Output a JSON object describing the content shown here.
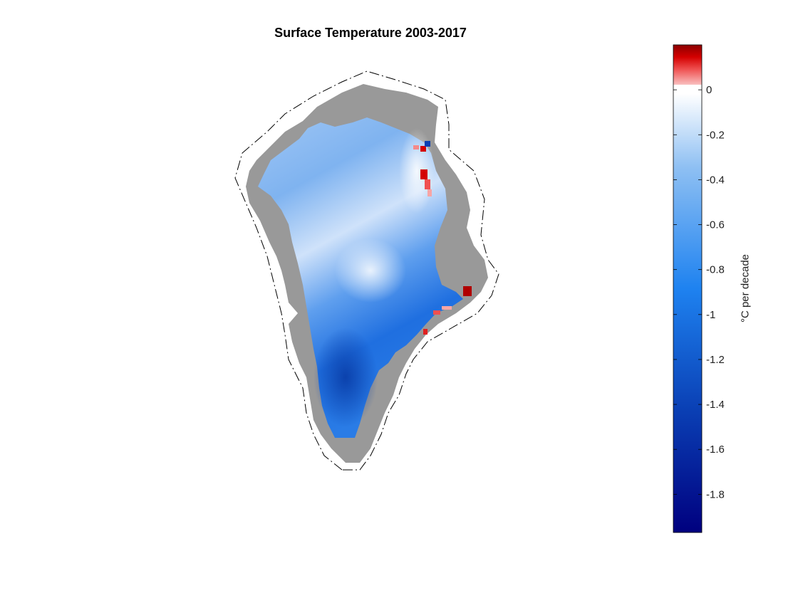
{
  "title": "Surface Temperature 2003-2017",
  "colorbar": {
    "label": "°C per decade",
    "ticks": [
      "0",
      "-0.2",
      "-0.4",
      "-0.6",
      "-0.8",
      "-1",
      "-1.2",
      "-1.4",
      "-1.6",
      "-1.8"
    ],
    "tick_values": [
      0,
      -0.2,
      -0.4,
      -0.6,
      -0.8,
      -1,
      -1.2,
      -1.4,
      -1.6,
      -1.8
    ],
    "range": [
      -1.97,
      0.2
    ],
    "colors": {
      "min": "#00007f",
      "dark_blue": "#0a3fb4",
      "mid_blue": "#1e82f0",
      "light_blue": "#a6ccf5",
      "zero": "#ffffff",
      "light_red": "#f7a5a5",
      "max": "#8b0000"
    }
  },
  "map": {
    "land_color": "#999999",
    "coastline_style": "dash-dot",
    "region": "Greenland"
  }
}
